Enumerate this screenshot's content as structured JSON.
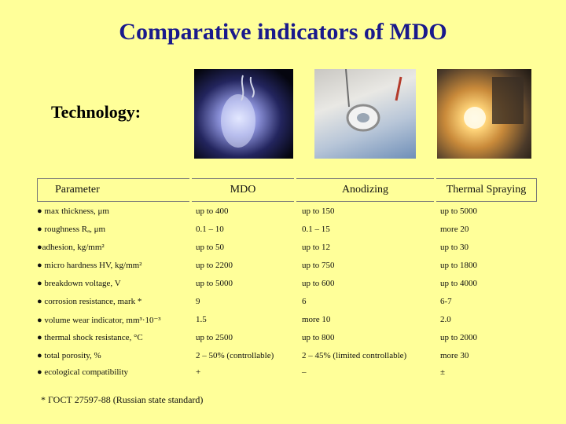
{
  "title": "Comparative indicators of MDO",
  "subtitle": "Technology:",
  "headers": [
    "Parameter",
    "MDO",
    "Anodizing",
    "Thermal  Spraying"
  ],
  "rows": [
    [
      "● max  thickness, μm",
      "up to 400",
      "up to 150",
      "up to 5000"
    ],
    [
      "● roughness Rₐ, μm",
      "0.1 – 10",
      "0.1 – 15",
      "more 20"
    ],
    [
      "●adhesion, kg/mm²",
      "up to 50",
      "up to 12",
      "up to 30"
    ],
    [
      "● micro hardness HV, kg/mm²",
      "up to 2200",
      "up to 750",
      "up to 1800"
    ],
    [
      "● breakdown voltage, V",
      "up to 5000",
      "up to 600",
      "up to 4000"
    ],
    [
      "● corrosion resistance, mark *",
      "9",
      "6",
      "6-7"
    ],
    [
      "● volume wear indicator, mm³·10⁻³",
      "1.5",
      "more 10",
      "2.0"
    ],
    [
      "● thermal shock resistance, °C",
      "up to 2500",
      "up to 800",
      "up to 2000"
    ],
    [
      "● total  porosity, %",
      "2 – 50% (controllable)",
      "2 – 45%  (limited controllable)",
      "more 30"
    ],
    [
      "● ecological compatibility",
      "+",
      "–",
      "±"
    ]
  ],
  "footnote": "* ГОСТ 27597-88  (Russian state standard)"
}
